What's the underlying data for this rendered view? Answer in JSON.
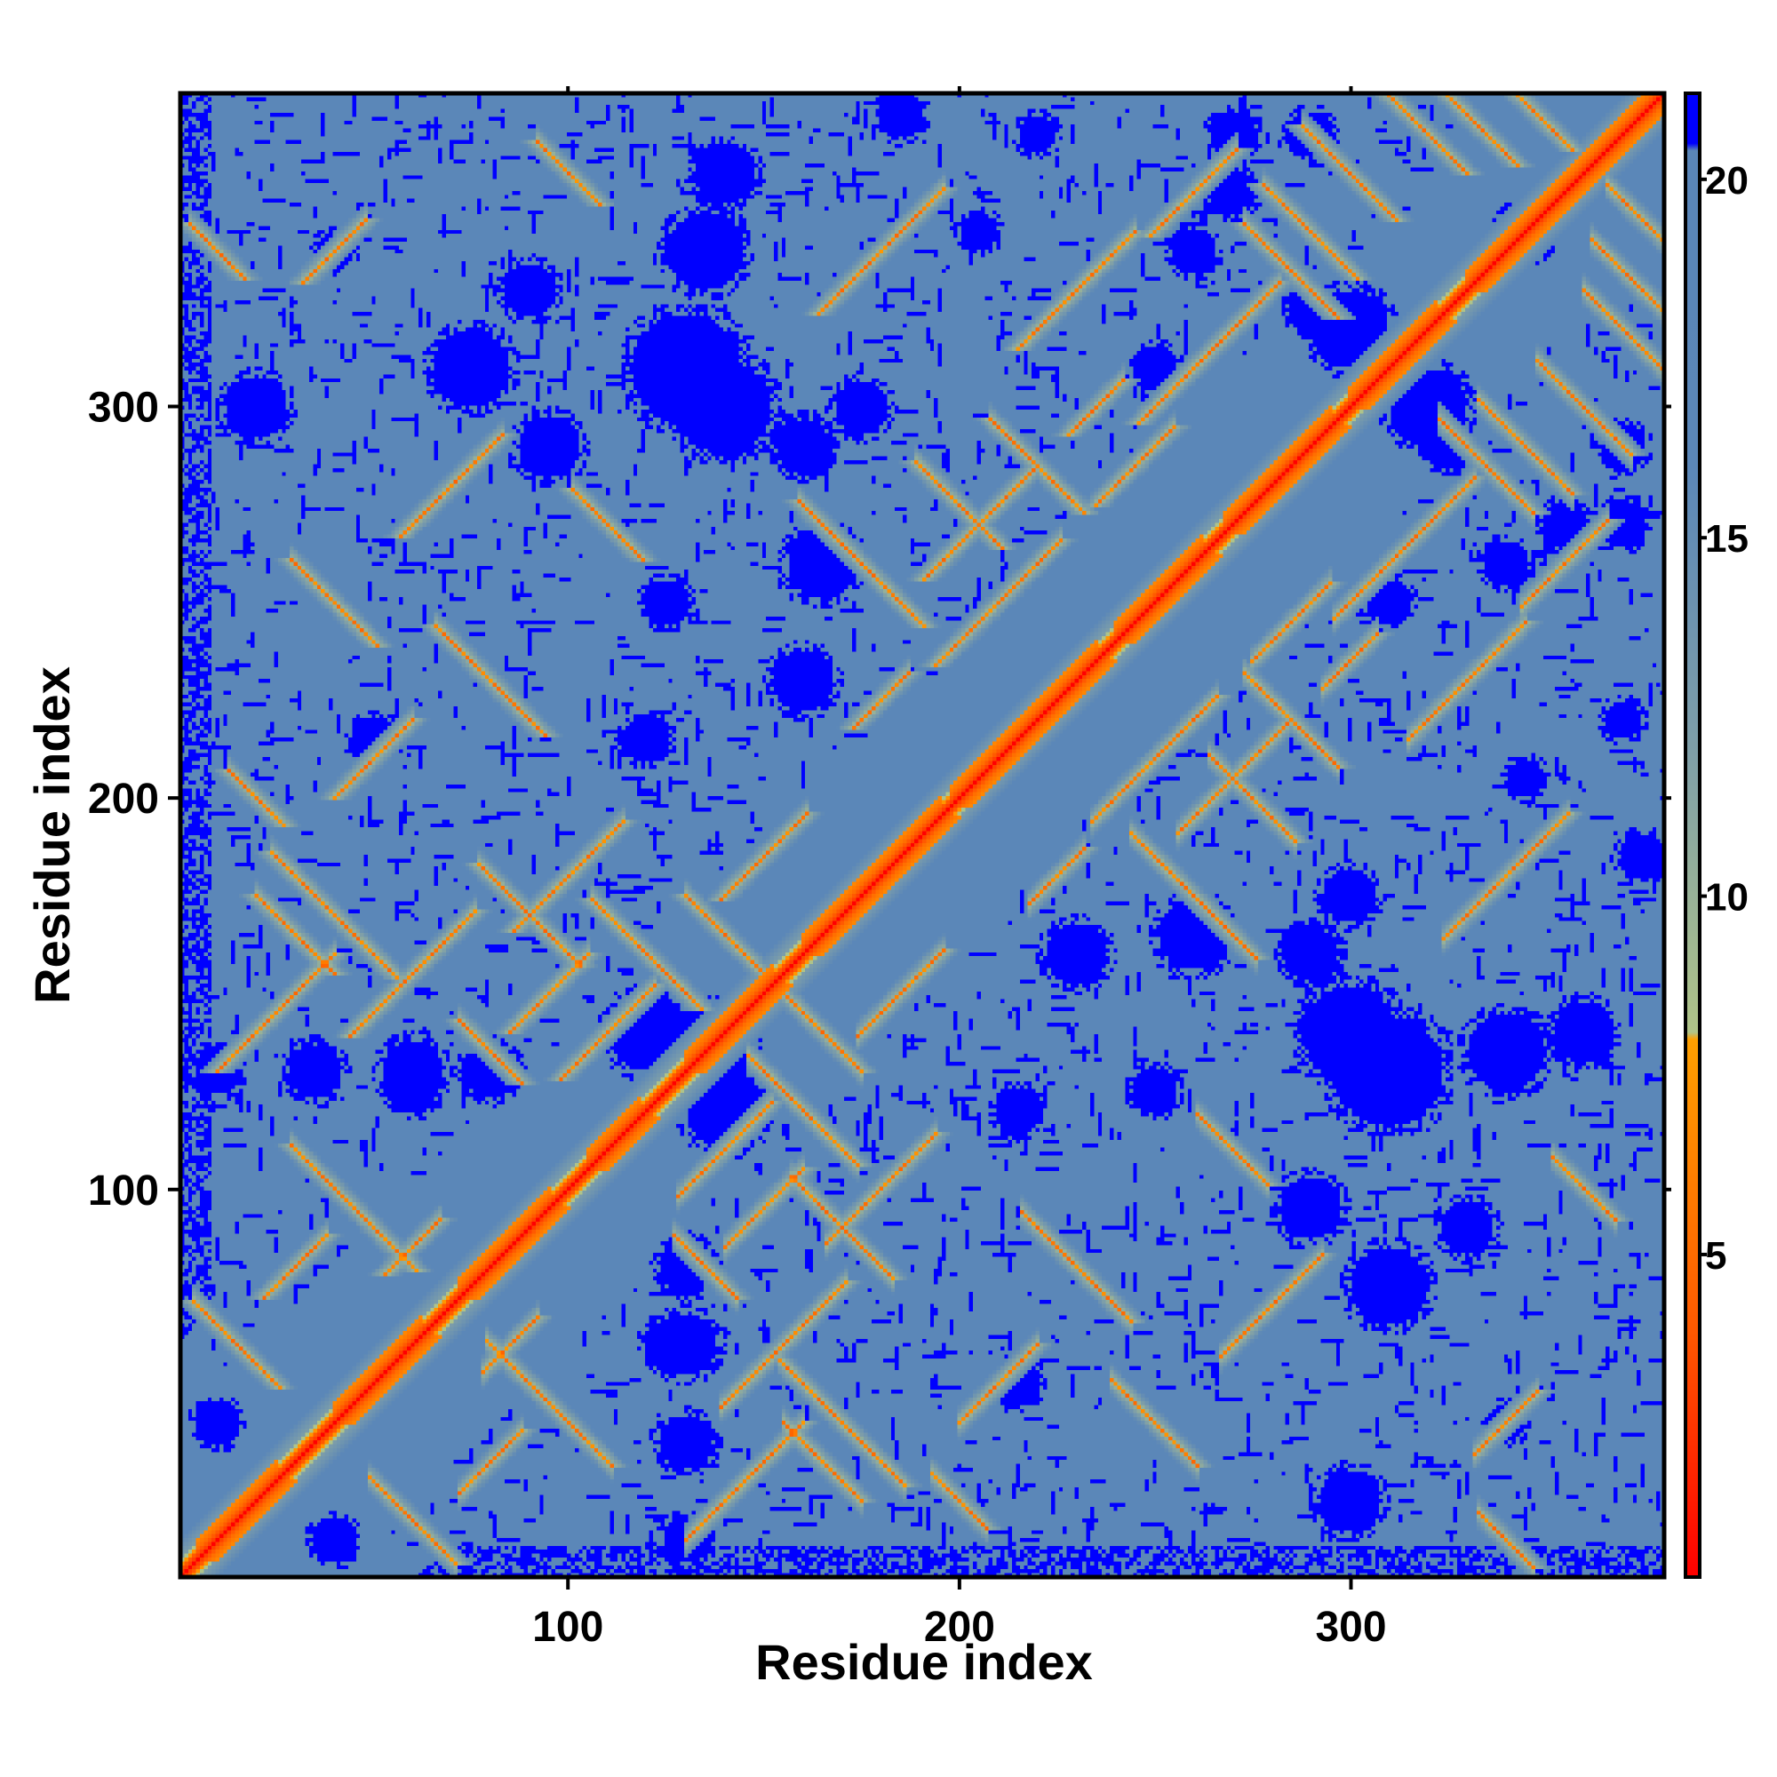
{
  "chart_data": {
    "type": "heatmap",
    "title": "",
    "xlabel": "Residue index",
    "ylabel": "Residue index",
    "xlim": [
      1,
      380
    ],
    "ylim": [
      1,
      380
    ],
    "x_ticks": [
      100,
      200,
      300
    ],
    "y_ticks": [
      100,
      200,
      300
    ],
    "x_tick_labels": [
      "100",
      "200",
      "300"
    ],
    "y_tick_labels": [
      "100",
      "200",
      "300"
    ],
    "grid": false,
    "colorbar": {
      "position": "right",
      "range": [
        0.5,
        21.2
      ],
      "ticks": [
        5,
        10,
        15,
        20
      ],
      "tick_labels": [
        "5",
        "10",
        "15",
        "20"
      ],
      "colors": [
        {
          "value": 0.5,
          "color": "#ff0000"
        },
        {
          "value": 4.0,
          "color": "#ff5a00"
        },
        {
          "value": 8.0,
          "color": "#ffa000"
        },
        {
          "value": 8.1,
          "color": "#b0c488"
        },
        {
          "value": 12.0,
          "color": "#7f9fa8"
        },
        {
          "value": 16.0,
          "color": "#5b87b8"
        },
        {
          "value": 20.4,
          "color": "#5a86b8"
        },
        {
          "value": 20.5,
          "color": "#0000ff"
        }
      ]
    },
    "matrix_description_values": {
      "diagonal": 0,
      "background": 16.5,
      "far_contacts": 21
    },
    "features": {
      "helix_segments": [
        [
          5,
          25
        ],
        [
          40,
          62
        ],
        [
          72,
          95
        ],
        [
          105,
          118
        ],
        [
          130,
          152
        ],
        [
          160,
          195
        ],
        [
          198,
          235
        ],
        [
          240,
          262
        ],
        [
          268,
          295
        ],
        [
          300,
          322
        ],
        [
          330,
          378
        ]
      ],
      "contact_pairs": [
        [
          30,
          80
        ],
        [
          45,
          95
        ],
        [
          60,
          85
        ],
        [
          15,
          60
        ],
        [
          80,
          135
        ],
        [
          95,
          150
        ],
        [
          110,
          140
        ],
        [
          120,
          160
        ],
        [
          40,
          170
        ],
        [
          60,
          155
        ],
        [
          30,
          165
        ],
        [
          25,
          145
        ],
        [
          205,
          270
        ],
        [
          210,
          250
        ],
        [
          220,
          285
        ],
        [
          235,
          300
        ],
        [
          245,
          285
        ],
        [
          260,
          310
        ],
        [
          270,
          320
        ],
        [
          180,
          225
        ],
        [
          200,
          275
        ],
        [
          175,
          260
        ],
        [
          285,
          335
        ],
        [
          290,
          345
        ],
        [
          330,
          375
        ],
        [
          140,
          165
        ],
        [
          150,
          185
        ],
        [
          90,
          170
        ],
        [
          100,
          180
        ],
        [
          20,
          200
        ],
        [
          10,
          340
        ],
        [
          40,
          340
        ],
        [
          100,
          360
        ],
        [
          180,
          340
        ],
        [
          230,
          330
        ],
        [
          300,
          360
        ],
        [
          40,
          250
        ],
        [
          70,
          280
        ],
        [
          110,
          270
        ],
        [
          50,
          210
        ],
        [
          80,
          230
        ],
        [
          260,
          355
        ],
        [
          320,
          370
        ],
        [
          345,
          378
        ]
      ],
      "blue_blobs": [
        [
          20,
          300,
          8
        ],
        [
          75,
          310,
          10
        ],
        [
          130,
          310,
          14
        ],
        [
          160,
          290,
          7
        ],
        [
          175,
          300,
          7
        ],
        [
          185,
          375,
          6
        ],
        [
          220,
          370,
          5
        ],
        [
          270,
          370,
          6
        ],
        [
          290,
          370,
          6
        ],
        [
          300,
          300,
          6
        ],
        [
          325,
          290,
          6
        ],
        [
          340,
          260,
          6
        ],
        [
          300,
          140,
          12
        ],
        [
          340,
          135,
          10
        ],
        [
          360,
          140,
          8
        ],
        [
          290,
          95,
          8
        ],
        [
          330,
          90,
          7
        ],
        [
          310,
          250,
          6
        ],
        [
          120,
          140,
          10
        ],
        [
          140,
          135,
          8
        ],
        [
          130,
          60,
          8
        ],
        [
          130,
          35,
          7
        ],
        [
          60,
          125,
          6
        ],
        [
          80,
          130,
          7
        ],
        [
          120,
          215,
          6
        ],
        [
          50,
          215,
          6
        ],
        [
          230,
          160,
          8
        ],
        [
          260,
          165,
          9
        ],
        [
          290,
          160,
          7
        ],
        [
          250,
          125,
          6
        ],
        [
          300,
          320,
          10
        ],
        [
          345,
          345,
          7
        ],
        [
          355,
          270,
          6
        ],
        [
          345,
          205,
          5
        ],
        [
          10,
          130,
          6
        ],
        [
          10,
          40,
          6
        ],
        [
          340,
          40,
          5
        ]
      ]
    }
  }
}
